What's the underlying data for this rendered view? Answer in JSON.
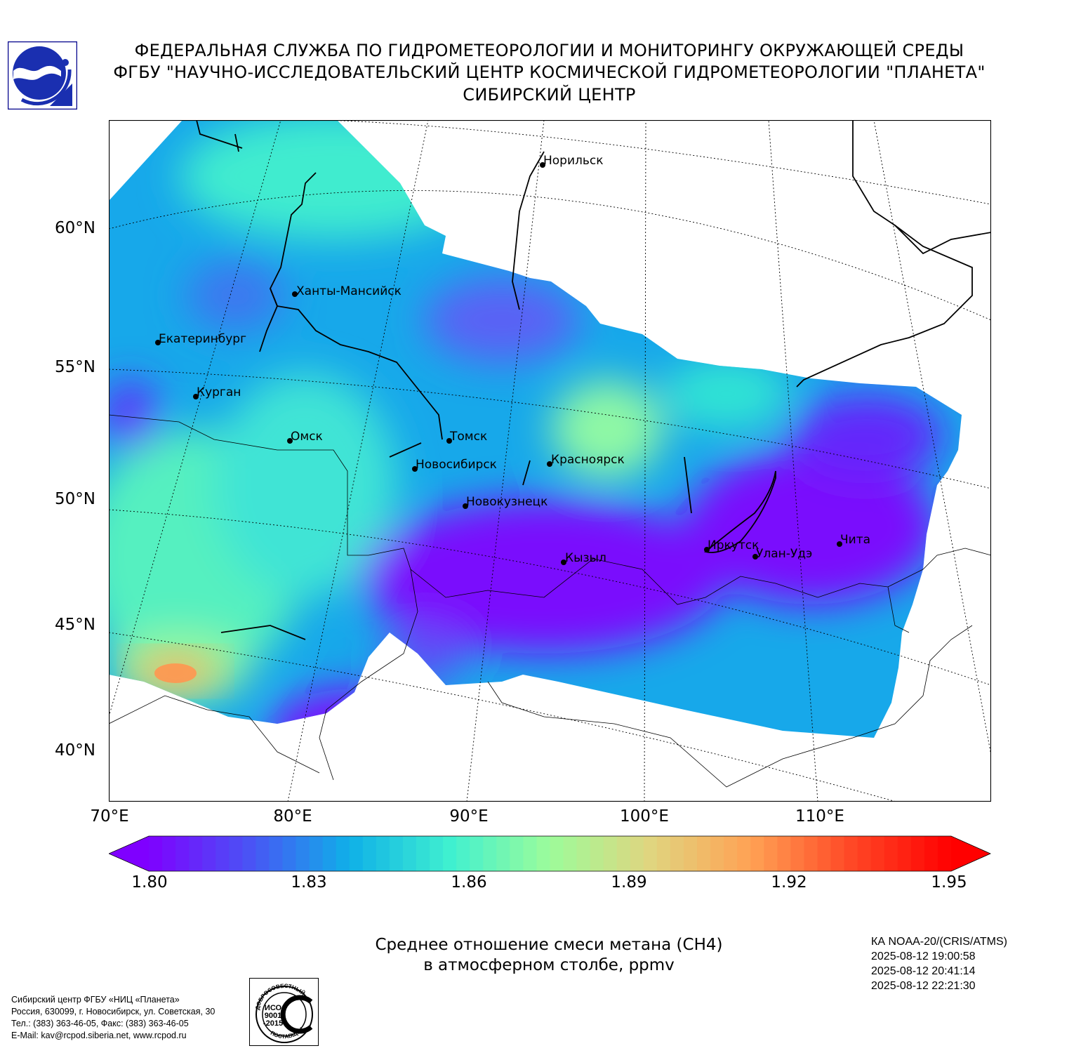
{
  "header": {
    "line1": "ФЕДЕРАЛЬНАЯ СЛУЖБА ПО ГИДРОМЕТЕОРОЛОГИИ И МОНИТОРИНГУ ОКРУЖАЮЩЕЙ СРЕДЫ",
    "line2": "ФГБУ \"НАУЧНО-ИССЛЕДОВАТЕЛЬСКИЙ ЦЕНТР КОСМИЧЕСКОЙ ГИДРОМЕТЕОРОЛОГИИ \"ПЛАНЕТА\"",
    "line3": "СИБИРСКИЙ ЦЕНТР"
  },
  "logo_icon": "roshydromet-logo-icon",
  "map": {
    "lat_labels": [
      "60°N",
      "55°N",
      "50°N",
      "45°N",
      "40°N"
    ],
    "lon_labels": [
      "70°E",
      "80°E",
      "90°E",
      "100°E",
      "110°E"
    ],
    "cities": [
      {
        "name": "Норильск"
      },
      {
        "name": "Ханты-Мансийск"
      },
      {
        "name": "Екатеринбург"
      },
      {
        "name": "Курган"
      },
      {
        "name": "Омск"
      },
      {
        "name": "Томск"
      },
      {
        "name": "Новосибирск"
      },
      {
        "name": "Красноярск"
      },
      {
        "name": "Новокузнецк"
      },
      {
        "name": "Иркутск"
      },
      {
        "name": "Улан-Удэ"
      },
      {
        "name": "Чита"
      },
      {
        "name": "Кызыл"
      }
    ]
  },
  "colorbar": {
    "min": 1.8,
    "max": 1.95,
    "ticks": [
      "1.80",
      "1.83",
      "1.86",
      "1.89",
      "1.92",
      "1.95"
    ],
    "colors": [
      "#7f00ff",
      "#4a53f5",
      "#0fb0e8",
      "#3ff0d0",
      "#9dfc9a",
      "#e0d57f",
      "#ffa254",
      "#ff4826",
      "#ff0000"
    ]
  },
  "caption": {
    "line1": "Среднее отношение смеси метана (CH4)",
    "line2": "в атмосферном столбе, ppmv"
  },
  "satellite": {
    "name": "КА NOAA-20/(CRIS/ATMS)",
    "times": [
      "2025-08-12 19:00:58",
      "2025-08-12 20:41:14",
      "2025-08-12 22:21:30"
    ]
  },
  "contact": {
    "line1": "Сибирский центр ФГБУ «НИЦ «Планета»",
    "line2": "Россия, 630099, г. Новосибирск, ул. Советская, 30",
    "line3": "Тел.: (383) 363-46-05, Факс: (383) 363-46-05",
    "line4": "E-Mail: kav@rcpod.siberia.net, www.rcpod.ru"
  },
  "iso_badge": {
    "top_text": "ДОБРОСОВЕСТНЫЙ",
    "line1": "ИСО",
    "line2": "9001",
    "line3": "-2015",
    "bottom_text": "ПОСТАВЩИК"
  }
}
